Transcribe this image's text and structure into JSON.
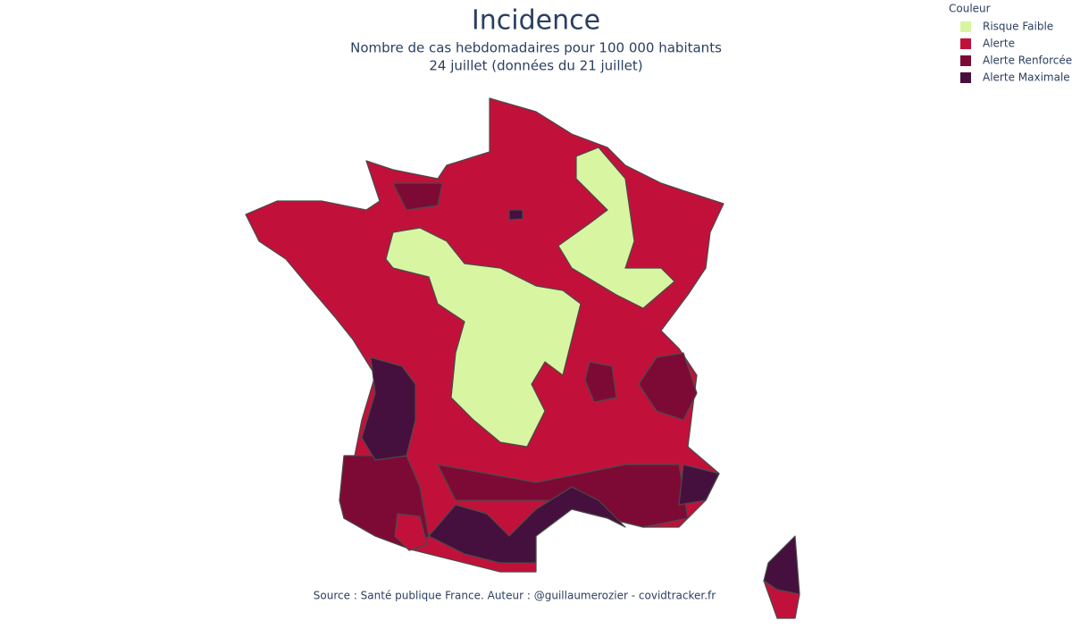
{
  "title": "Incidence",
  "subtitle": [
    "Nombre de cas hebdomadaires pour 100 000 habitants",
    "24 juillet (données du 21 juillet)"
  ],
  "legend": {
    "title": "Couleur",
    "items": [
      {
        "name": "Risque Faible",
        "color": "#d8f5a2"
      },
      {
        "name": "Alerte",
        "color": "#c1113a"
      },
      {
        "name": "Alerte Renforcée",
        "color": "#7d0a35"
      },
      {
        "name": "Alerte Maximale",
        "color": "#45103d"
      }
    ]
  },
  "source": "Source : Santé publique France. Auteur : @guillaumerozier - covidtracker.fr"
}
